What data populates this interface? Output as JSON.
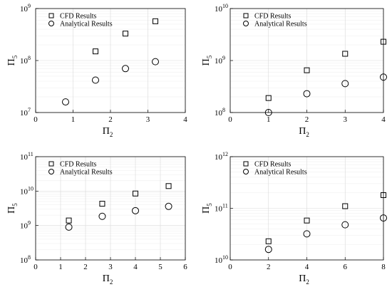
{
  "chart_data": [
    {
      "type": "scatter",
      "xlabel": "Π",
      "xlabel_sub": "2",
      "ylabel": "Π",
      "ylabel_sub": "5",
      "log_y": true,
      "xlim": [
        0,
        4
      ],
      "xticks": [
        "0",
        "1",
        "2",
        "3",
        "4"
      ],
      "ylim_exp": [
        7,
        9
      ],
      "yticks_exp": [
        "7",
        "8",
        "9"
      ],
      "legend_loc": "top-left",
      "series": [
        {
          "name": "CFD Results",
          "marker": "square",
          "x": [
            1.6,
            2.4,
            3.2
          ],
          "y": [
            150000000,
            330000000,
            570000000
          ]
        },
        {
          "name": "Analytical Results",
          "marker": "circle",
          "x": [
            0.8,
            1.6,
            2.4,
            3.2
          ],
          "y": [
            16000000,
            42000000,
            70000000,
            95000000
          ]
        }
      ]
    },
    {
      "type": "scatter",
      "xlabel": "Π",
      "xlabel_sub": "2",
      "ylabel": "Π",
      "ylabel_sub": "5",
      "log_y": true,
      "xlim": [
        0,
        4
      ],
      "xticks": [
        "0",
        "1",
        "2",
        "3",
        "4"
      ],
      "ylim_exp": [
        8,
        10
      ],
      "yticks_exp": [
        "8",
        "9",
        "10"
      ],
      "legend_loc": "top-left",
      "series": [
        {
          "name": "CFD Results",
          "marker": "square",
          "x": [
            1,
            2,
            3,
            4
          ],
          "y": [
            190000000,
            650000000,
            1350000000,
            2300000000
          ]
        },
        {
          "name": "Analytical Results",
          "marker": "circle",
          "x": [
            1,
            2,
            3,
            4
          ],
          "y": [
            100000000,
            230000000,
            360000000,
            480000000
          ]
        }
      ]
    },
    {
      "type": "scatter",
      "xlabel": "Π",
      "xlabel_sub": "2",
      "ylabel": "Π",
      "ylabel_sub": "5",
      "log_y": true,
      "xlim": [
        0,
        6
      ],
      "xticks": [
        "0",
        "1",
        "2",
        "3",
        "4",
        "5",
        "6"
      ],
      "ylim_exp": [
        8,
        11
      ],
      "yticks_exp": [
        "8",
        "9",
        "10",
        "11"
      ],
      "legend_loc": "top-left",
      "series": [
        {
          "name": "CFD Results",
          "marker": "square",
          "x": [
            1.33,
            2.67,
            4.0,
            5.33
          ],
          "y": [
            1400000000,
            4300000000,
            8500000000,
            14000000000
          ]
        },
        {
          "name": "Analytical Results",
          "marker": "circle",
          "x": [
            1.33,
            2.67,
            4.0,
            5.33
          ],
          "y": [
            900000000,
            1850000000,
            2700000000,
            3600000000
          ]
        }
      ]
    },
    {
      "type": "scatter",
      "xlabel": "Π",
      "xlabel_sub": "2",
      "ylabel": "Π",
      "ylabel_sub": "5",
      "log_y": true,
      "xlim": [
        0,
        8
      ],
      "xticks": [
        "0",
        "2",
        "4",
        "6",
        "8"
      ],
      "ylim_exp": [
        10,
        12
      ],
      "yticks_exp": [
        "10",
        "11",
        "12"
      ],
      "legend_loc": "top-left",
      "series": [
        {
          "name": "CFD Results",
          "marker": "square",
          "x": [
            2,
            4,
            6,
            8
          ],
          "y": [
            23000000000,
            58000000000,
            110000000000,
            180000000000
          ]
        },
        {
          "name": "Analytical Results",
          "marker": "circle",
          "x": [
            2,
            4,
            6,
            8
          ],
          "y": [
            16000000000,
            32000000000,
            48000000000,
            65000000000
          ]
        }
      ]
    }
  ]
}
